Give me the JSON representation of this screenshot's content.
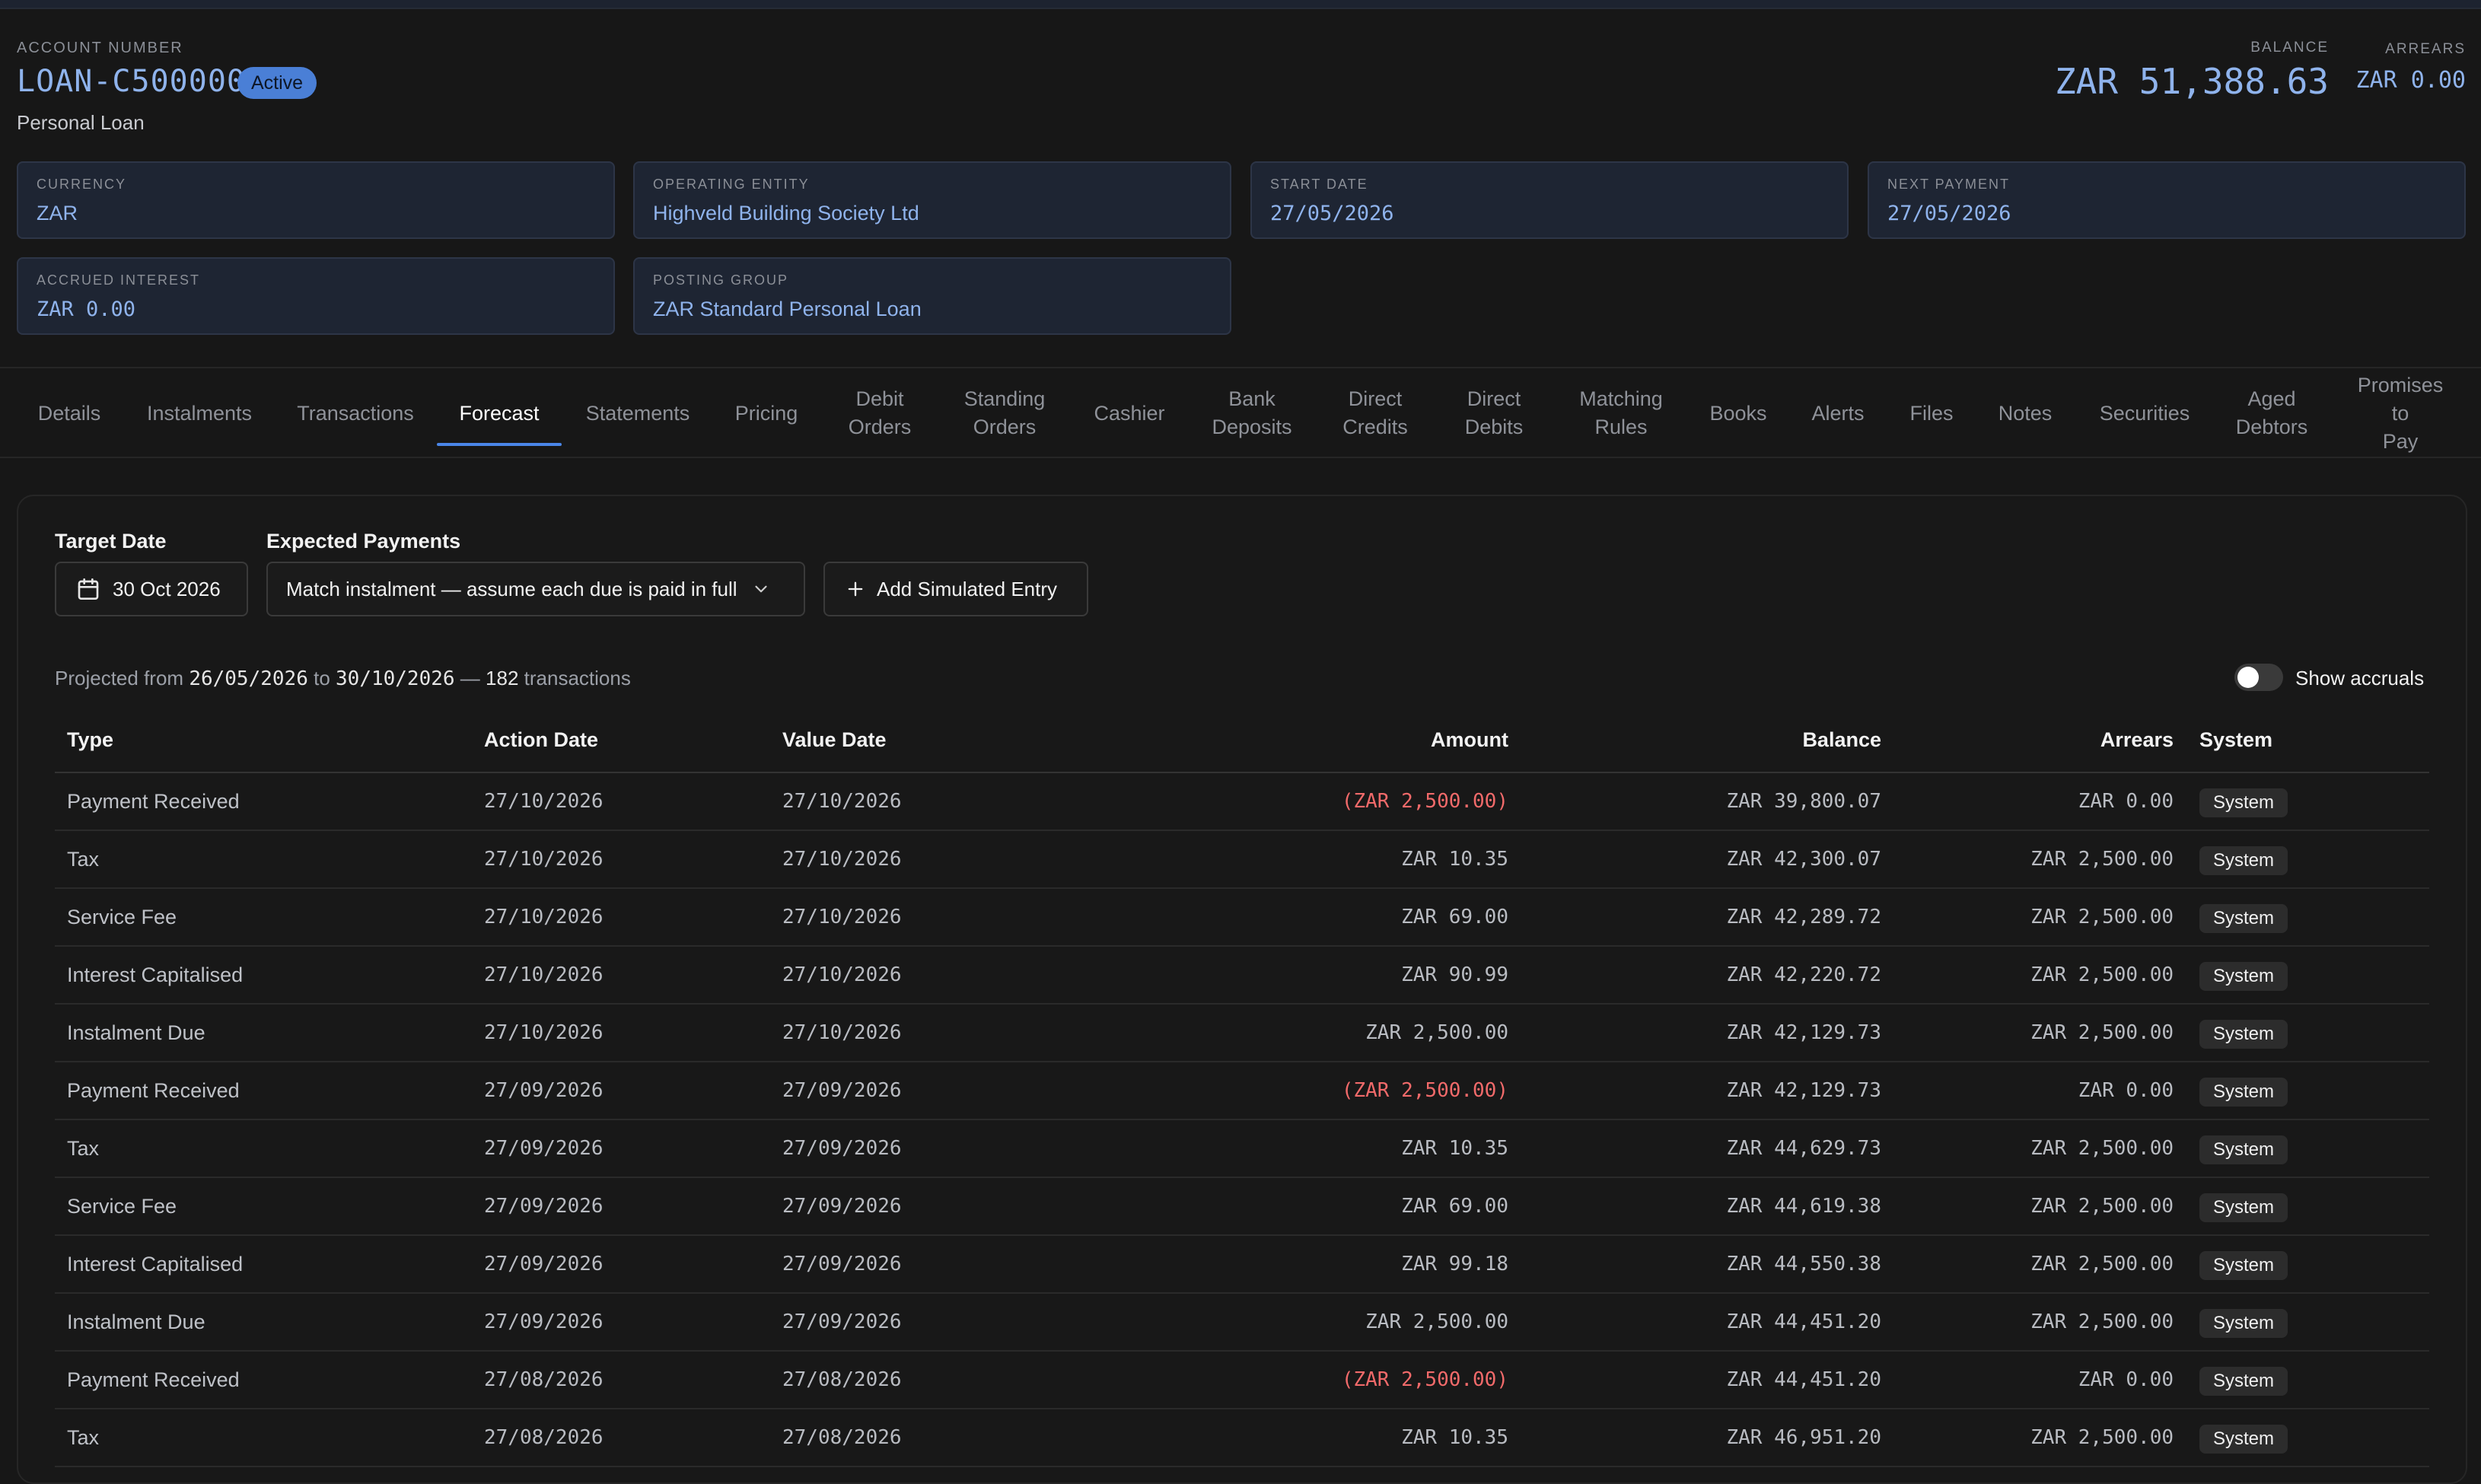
{
  "account": {
    "number_label": "ACCOUNT NUMBER",
    "number": "LOAN-C500000",
    "status": "Active",
    "product": "Personal Loan",
    "balance_label": "BALANCE",
    "balance": "ZAR 51,388.63",
    "arrears_label": "ARREARS",
    "arrears": "ZAR 0.00"
  },
  "cards": [
    {
      "label": "CURRENCY",
      "value": "ZAR"
    },
    {
      "label": "OPERATING ENTITY",
      "value": "Highveld Building Society Ltd"
    },
    {
      "label": "START DATE",
      "value": "27/05/2026"
    },
    {
      "label": "NEXT PAYMENT",
      "value": "27/05/2026"
    },
    {
      "label": "ACCRUED INTEREST",
      "value": "ZAR 0.00"
    },
    {
      "label": "POSTING GROUP",
      "value": "ZAR Standard Personal Loan"
    }
  ],
  "tabs": [
    {
      "label": "Details"
    },
    {
      "label": "Instalments"
    },
    {
      "label": "Transactions"
    },
    {
      "label": "Forecast",
      "active": true
    },
    {
      "label": "Statements"
    },
    {
      "label": "Pricing"
    },
    {
      "label": "Debit Orders"
    },
    {
      "label": "Standing Orders"
    },
    {
      "label": "Cashier"
    },
    {
      "label": "Bank Deposits"
    },
    {
      "label": "Direct Credits"
    },
    {
      "label": "Direct Debits"
    },
    {
      "label": "Matching Rules"
    },
    {
      "label": "Books"
    },
    {
      "label": "Alerts"
    },
    {
      "label": "Files"
    },
    {
      "label": "Notes"
    },
    {
      "label": "Securities"
    },
    {
      "label": "Aged Debtors"
    },
    {
      "label": "Promises to Pay"
    }
  ],
  "forecast": {
    "target_date_label": "Target Date",
    "target_date": "30 Oct 2026",
    "expected_payments_label": "Expected Payments",
    "expected_payments": "Match instalment — assume each due is paid in full",
    "add_button": "Add Simulated Entry",
    "summary_prefix": "Projected from",
    "from_date": "26/05/2026",
    "summary_to": "to",
    "to_date": "30/10/2026",
    "summary_dash": "—",
    "count": "182",
    "summary_suffix": "transactions",
    "show_accruals_label": "Show accruals",
    "show_accruals": false
  },
  "table": {
    "columns": {
      "type": "Type",
      "action_date": "Action Date",
      "value_date": "Value Date",
      "amount": "Amount",
      "balance": "Balance",
      "arrears": "Arrears",
      "system": "System"
    },
    "rows": [
      {
        "type": "Payment Received",
        "action_date": "27/10/2026",
        "value_date": "27/10/2026",
        "amount": "(ZAR 2,500.00)",
        "negative": true,
        "balance": "ZAR 39,800.07",
        "arrears": "ZAR 0.00",
        "system": "System"
      },
      {
        "type": "Tax",
        "action_date": "27/10/2026",
        "value_date": "27/10/2026",
        "amount": "ZAR 10.35",
        "negative": false,
        "balance": "ZAR 42,300.07",
        "arrears": "ZAR 2,500.00",
        "system": "System"
      },
      {
        "type": "Service Fee",
        "action_date": "27/10/2026",
        "value_date": "27/10/2026",
        "amount": "ZAR 69.00",
        "negative": false,
        "balance": "ZAR 42,289.72",
        "arrears": "ZAR 2,500.00",
        "system": "System"
      },
      {
        "type": "Interest Capitalised",
        "action_date": "27/10/2026",
        "value_date": "27/10/2026",
        "amount": "ZAR 90.99",
        "negative": false,
        "balance": "ZAR 42,220.72",
        "arrears": "ZAR 2,500.00",
        "system": "System"
      },
      {
        "type": "Instalment Due",
        "action_date": "27/10/2026",
        "value_date": "27/10/2026",
        "amount": "ZAR 2,500.00",
        "negative": false,
        "balance": "ZAR 42,129.73",
        "arrears": "ZAR 2,500.00",
        "system": "System"
      },
      {
        "type": "Payment Received",
        "action_date": "27/09/2026",
        "value_date": "27/09/2026",
        "amount": "(ZAR 2,500.00)",
        "negative": true,
        "balance": "ZAR 42,129.73",
        "arrears": "ZAR 0.00",
        "system": "System"
      },
      {
        "type": "Tax",
        "action_date": "27/09/2026",
        "value_date": "27/09/2026",
        "amount": "ZAR 10.35",
        "negative": false,
        "balance": "ZAR 44,629.73",
        "arrears": "ZAR 2,500.00",
        "system": "System"
      },
      {
        "type": "Service Fee",
        "action_date": "27/09/2026",
        "value_date": "27/09/2026",
        "amount": "ZAR 69.00",
        "negative": false,
        "balance": "ZAR 44,619.38",
        "arrears": "ZAR 2,500.00",
        "system": "System"
      },
      {
        "type": "Interest Capitalised",
        "action_date": "27/09/2026",
        "value_date": "27/09/2026",
        "amount": "ZAR 99.18",
        "negative": false,
        "balance": "ZAR 44,550.38",
        "arrears": "ZAR 2,500.00",
        "system": "System"
      },
      {
        "type": "Instalment Due",
        "action_date": "27/09/2026",
        "value_date": "27/09/2026",
        "amount": "ZAR 2,500.00",
        "negative": false,
        "balance": "ZAR 44,451.20",
        "arrears": "ZAR 2,500.00",
        "system": "System"
      },
      {
        "type": "Payment Received",
        "action_date": "27/08/2026",
        "value_date": "27/08/2026",
        "amount": "(ZAR 2,500.00)",
        "negative": true,
        "balance": "ZAR 44,451.20",
        "arrears": "ZAR 0.00",
        "system": "System"
      },
      {
        "type": "Tax",
        "action_date": "27/08/2026",
        "value_date": "27/08/2026",
        "amount": "ZAR 10.35",
        "negative": false,
        "balance": "ZAR 46,951.20",
        "arrears": "ZAR 2,500.00",
        "system": "System"
      }
    ]
  },
  "colors": {
    "accent": "#4a86e8",
    "value_blue": "#8fb3ec",
    "negative_red": "#f16a6a",
    "background": "#171717"
  },
  "icons": [
    "calendar-icon",
    "chevron-down-icon",
    "plus-icon"
  ]
}
